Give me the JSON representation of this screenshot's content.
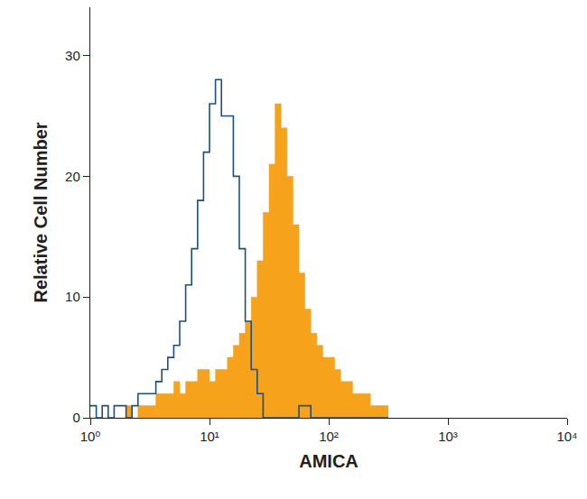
{
  "chart_data": {
    "type": "histogram",
    "x_label": "AMICA",
    "y_label": "Relative Cell Number",
    "log": "x",
    "grid": false,
    "bins": [
      1,
      1.122,
      1.259,
      1.413,
      1.585,
      1.778,
      1.995,
      2.239,
      2.512,
      2.818,
      3.162,
      3.548,
      3.981,
      4.467,
      5.012,
      5.623,
      6.31,
      7.079,
      7.943,
      8.913,
      10,
      11.22,
      12.59,
      14.13,
      15.85,
      17.78,
      19.95,
      22.39,
      25.12,
      28.18,
      31.62,
      35.48,
      39.81,
      44.67,
      50.12,
      56.23,
      63.1,
      70.79,
      79.43,
      89.13,
      100,
      112.2,
      125.9,
      141.3,
      158.5,
      177.8,
      199.5,
      223.9,
      251.2,
      281.8,
      316.2
    ],
    "series": [
      {
        "type": "area",
        "color": "#f7a21b",
        "values": [
          0,
          0,
          0,
          0,
          0,
          0,
          1,
          0,
          1,
          1,
          1,
          2,
          2,
          2,
          3,
          2,
          3,
          3,
          4,
          4,
          3,
          4,
          4,
          5,
          6,
          7,
          8,
          10,
          13,
          17,
          21,
          26,
          24,
          20,
          16,
          12,
          9,
          7,
          6,
          5,
          5,
          4,
          3,
          3,
          2,
          2,
          2,
          1,
          1,
          1
        ]
      },
      {
        "type": "line",
        "color": "#1f4f7f",
        "values": [
          1,
          0,
          1,
          0,
          1,
          1,
          0,
          1,
          2,
          2,
          2,
          3,
          4,
          5,
          6,
          8,
          11,
          14,
          18,
          22,
          26,
          28,
          25,
          25,
          20,
          14,
          8,
          4,
          2,
          0,
          0,
          0,
          0,
          0,
          0,
          1,
          1,
          0,
          0,
          0,
          0,
          0,
          0,
          0,
          0,
          0,
          0,
          0,
          0,
          0
        ]
      }
    ],
    "xlim": [
      1,
      10000
    ],
    "xticks": [
      {
        "value": 1,
        "label": "10⁰"
      },
      {
        "value": 10,
        "label": "10¹"
      },
      {
        "value": 100,
        "label": "10²"
      },
      {
        "value": 1000,
        "label": "10³"
      },
      {
        "value": 10000,
        "label": "10⁴"
      }
    ],
    "ylim": [
      0,
      34
    ],
    "yticks": [
      0,
      10,
      20,
      30
    ]
  }
}
